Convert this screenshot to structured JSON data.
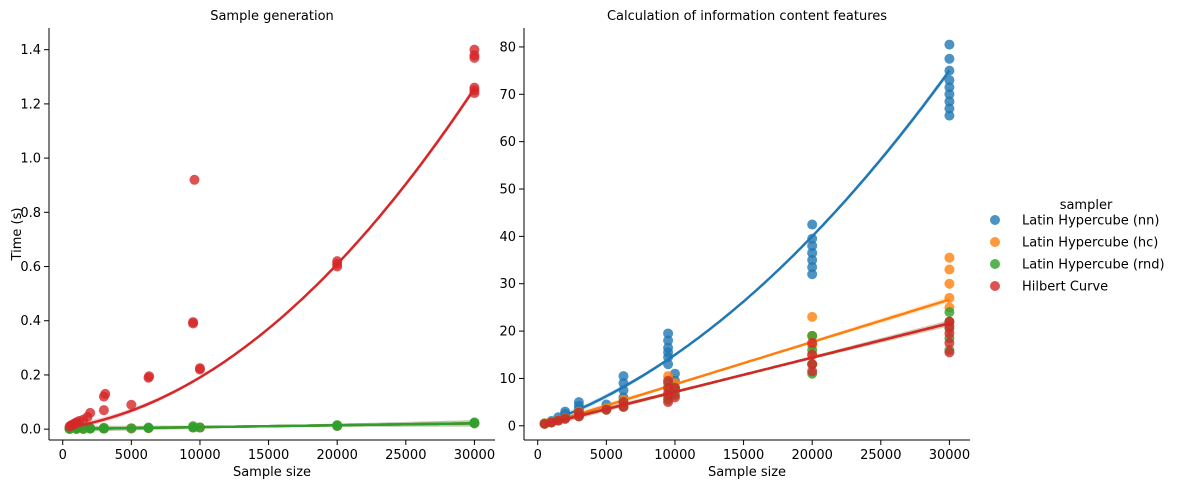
{
  "chart_data": [
    {
      "type": "scatter",
      "title": "Sample generation",
      "xlabel": "Sample size",
      "ylabel": "Time (s)",
      "xlim": [
        -1000,
        31500
      ],
      "ylim": [
        -0.04,
        1.48
      ],
      "xticks": [
        0,
        5000,
        10000,
        15000,
        20000,
        25000,
        30000
      ],
      "yticks": [
        0.0,
        0.2,
        0.4,
        0.6,
        0.8,
        1.0,
        1.2,
        1.4
      ],
      "ytick_decimals": 1,
      "grid": false,
      "series": [
        {
          "name": "Latin Hypercube (nn)",
          "x": [
            500,
            1000,
            1500,
            2000,
            3000,
            5000,
            6250,
            9500,
            10000,
            20000,
            30000
          ],
          "y": [
            0.001,
            0.001,
            0.001,
            0.002,
            0.002,
            0.003,
            0.004,
            0.006,
            0.006,
            0.012,
            0.022
          ],
          "fit": [
            0.0005,
            7e-07,
            0.0
          ]
        },
        {
          "name": "Latin Hypercube (hc)",
          "x": [
            500,
            1000,
            1500,
            2000,
            3000,
            5000,
            6250,
            9500,
            10000,
            20000,
            30000
          ],
          "y": [
            0.001,
            0.001,
            0.001,
            0.002,
            0.002,
            0.003,
            0.004,
            0.006,
            0.006,
            0.012,
            0.022
          ],
          "fit": [
            0.0005,
            7e-07,
            0.0
          ]
        },
        {
          "name": "Latin Hypercube (rnd)",
          "x": [
            500,
            1000,
            1500,
            2000,
            3000,
            5000,
            6250,
            9500,
            10000,
            20000,
            30000,
            500,
            1000,
            2000,
            3000,
            6250,
            9500,
            20000,
            30000
          ],
          "y": [
            0.001,
            0.001,
            0.001,
            0.002,
            0.002,
            0.003,
            0.004,
            0.006,
            0.006,
            0.012,
            0.022,
            0.003,
            0.004,
            0.004,
            0.005,
            0.006,
            0.011,
            0.015,
            0.025
          ],
          "fit": [
            0.0005,
            7e-07,
            0.0
          ]
        },
        {
          "name": "Hilbert Curve",
          "x": [
            500,
            600,
            700,
            800,
            900,
            1000,
            1200,
            1500,
            1800,
            2000,
            3000,
            3000,
            3100,
            5000,
            6250,
            6300,
            9500,
            9500,
            9600,
            10000,
            10000,
            20000,
            20000,
            20000,
            30000,
            30000,
            30000,
            30000,
            30000,
            30000
          ],
          "y": [
            0.01,
            0.014,
            0.016,
            0.018,
            0.022,
            0.025,
            0.03,
            0.035,
            0.045,
            0.06,
            0.07,
            0.12,
            0.13,
            0.09,
            0.19,
            0.195,
            0.39,
            0.395,
            0.92,
            0.22,
            0.225,
            0.6,
            0.61,
            0.62,
            1.24,
            1.25,
            1.26,
            1.37,
            1.38,
            1.4
          ],
          "fit": [
            0.003,
            7.3e-06,
            1.15e-09
          ]
        }
      ]
    },
    {
      "type": "scatter",
      "title": "Calculation of information content features",
      "xlabel": "Sample size",
      "ylabel": "",
      "xlim": [
        -1000,
        31500
      ],
      "ylim": [
        -3,
        84
      ],
      "xticks": [
        0,
        5000,
        10000,
        15000,
        20000,
        25000,
        30000
      ],
      "yticks": [
        0,
        10,
        20,
        30,
        40,
        50,
        60,
        70,
        80
      ],
      "ytick_decimals": 0,
      "grid": false,
      "series": [
        {
          "name": "Latin Hypercube (nn)",
          "x": [
            500,
            1000,
            1500,
            2000,
            2000,
            3000,
            3000,
            3000,
            5000,
            6250,
            6250,
            6250,
            6250,
            9500,
            9500,
            9500,
            9500,
            9500,
            9500,
            10000,
            10000,
            10000,
            20000,
            20000,
            20000,
            20000,
            20000,
            20000,
            20000,
            30000,
            30000,
            30000,
            30000,
            30000,
            30000,
            30000,
            30000,
            30000
          ],
          "y": [
            0.5,
            1.0,
            1.8,
            2.5,
            3.0,
            3.5,
            4.2,
            5.0,
            4.5,
            6.0,
            7.5,
            9.0,
            10.5,
            13.0,
            14.5,
            15.5,
            16.5,
            18.0,
            19.5,
            8.0,
            9.5,
            11.0,
            32.0,
            33.5,
            35.0,
            36.5,
            38.0,
            39.5,
            42.5,
            65.5,
            67.0,
            68.5,
            70.0,
            71.5,
            73.0,
            75.0,
            77.5,
            80.5
          ],
          "fit": [
            0.0,
            0.001,
            5e-08
          ]
        },
        {
          "name": "Latin Hypercube (hc)",
          "x": [
            500,
            1000,
            1500,
            2000,
            3000,
            3000,
            5000,
            6250,
            6250,
            9500,
            9500,
            9500,
            10000,
            10000,
            20000,
            20000,
            20000,
            20000,
            20000,
            30000,
            30000,
            30000,
            30000,
            30000,
            30000
          ],
          "y": [
            0.5,
            0.8,
            1.2,
            1.6,
            2.2,
            3.0,
            3.6,
            4.2,
            5.5,
            6.0,
            8.0,
            10.5,
            7.0,
            9.0,
            13.0,
            15.0,
            17.0,
            19.0,
            23.0,
            22.0,
            25.0,
            27.0,
            30.0,
            33.0,
            35.5
          ],
          "fit": [
            -0.2,
            0.000895,
            0.0
          ]
        },
        {
          "name": "Latin Hypercube (rnd)",
          "x": [
            500,
            1000,
            1500,
            2000,
            3000,
            3000,
            5000,
            6250,
            6250,
            9500,
            9500,
            9500,
            10000,
            10000,
            20000,
            20000,
            20000,
            20000,
            30000,
            30000,
            30000,
            30000,
            30000
          ],
          "y": [
            0.4,
            0.7,
            1.1,
            1.5,
            2.0,
            2.8,
            3.4,
            4.0,
            5.0,
            5.5,
            7.0,
            9.0,
            6.5,
            8.0,
            11.0,
            13.0,
            16.0,
            19.0,
            16.0,
            18.5,
            20.5,
            22.0,
            24.0
          ],
          "fit": [
            -0.1,
            0.000725,
            0.0
          ]
        },
        {
          "name": "Hilbert Curve",
          "x": [
            500,
            1000,
            1500,
            2000,
            3000,
            3000,
            5000,
            6250,
            6250,
            9500,
            9500,
            9500,
            9500,
            10000,
            10000,
            20000,
            20000,
            20000,
            20000,
            30000,
            30000,
            30000,
            30000,
            30000
          ],
          "y": [
            0.4,
            0.7,
            1.1,
            1.5,
            2.0,
            2.8,
            3.4,
            4.0,
            5.0,
            5.0,
            6.5,
            8.0,
            9.5,
            6.0,
            8.0,
            11.5,
            13.0,
            15.0,
            17.5,
            15.5,
            17.5,
            19.5,
            21.0,
            22.0
          ],
          "fit": [
            -0.1,
            0.000725,
            0.0
          ]
        }
      ]
    }
  ],
  "legend": {
    "title": "sampler",
    "placement": "center-right",
    "entries": [
      "Latin Hypercube (nn)",
      "Latin Hypercube (hc)",
      "Latin Hypercube (rnd)",
      "Hilbert Curve"
    ]
  },
  "colors": {
    "Latin Hypercube (nn)": "#1f77b4",
    "Latin Hypercube (hc)": "#ff7f0e",
    "Latin Hypercube (rnd)": "#2ca02c",
    "Hilbert Curve": "#d62728"
  }
}
